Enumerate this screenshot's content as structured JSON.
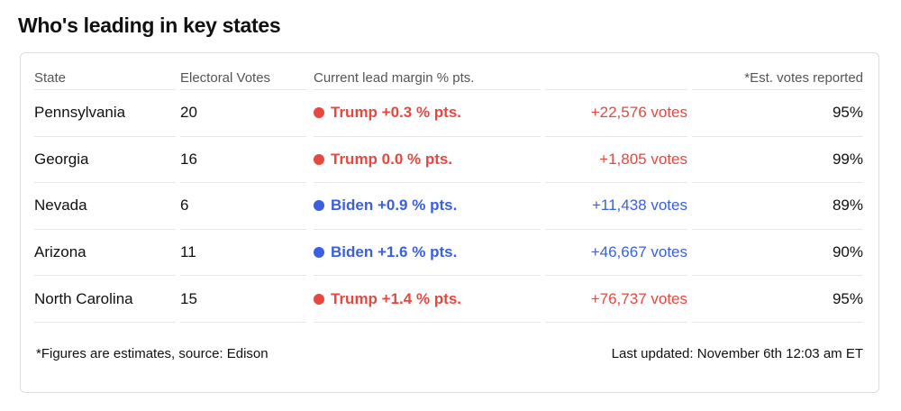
{
  "header": {
    "title": "Who's leading in key states"
  },
  "table": {
    "columns": [
      "State",
      "Electoral Votes",
      "Current lead margin % pts.",
      "*Est. votes reported"
    ],
    "rows": [
      {
        "state": "Pennsylvania",
        "electoral_votes": "20",
        "lead": "Trump +0.3 % pts.",
        "votes": "+22,576 votes",
        "reported": "95%",
        "color": "#e8473f"
      },
      {
        "state": "Georgia",
        "electoral_votes": "16",
        "lead": "Trump 0.0 % pts.",
        "votes": "+1,805 votes",
        "reported": "99%",
        "color": "#e8473f"
      },
      {
        "state": "Nevada",
        "electoral_votes": "6",
        "lead": "Biden +0.9 % pts.",
        "votes": "+11,438 votes",
        "reported": "89%",
        "color": "#3a5fe0"
      },
      {
        "state": "Arizona",
        "electoral_votes": "11",
        "lead": "Biden +1.6 % pts.",
        "votes": "+46,667 votes",
        "reported": "90%",
        "color": "#3a5fe0"
      },
      {
        "state": "North Carolina",
        "electoral_votes": "15",
        "lead": "Trump +1.4 % pts.",
        "votes": "+76,737 votes",
        "reported": "95%",
        "color": "#e8473f"
      }
    ]
  },
  "footer": {
    "source": "*Figures are estimates, source: Edison",
    "updated": "Last updated: November 6th 12:03 am ET"
  }
}
